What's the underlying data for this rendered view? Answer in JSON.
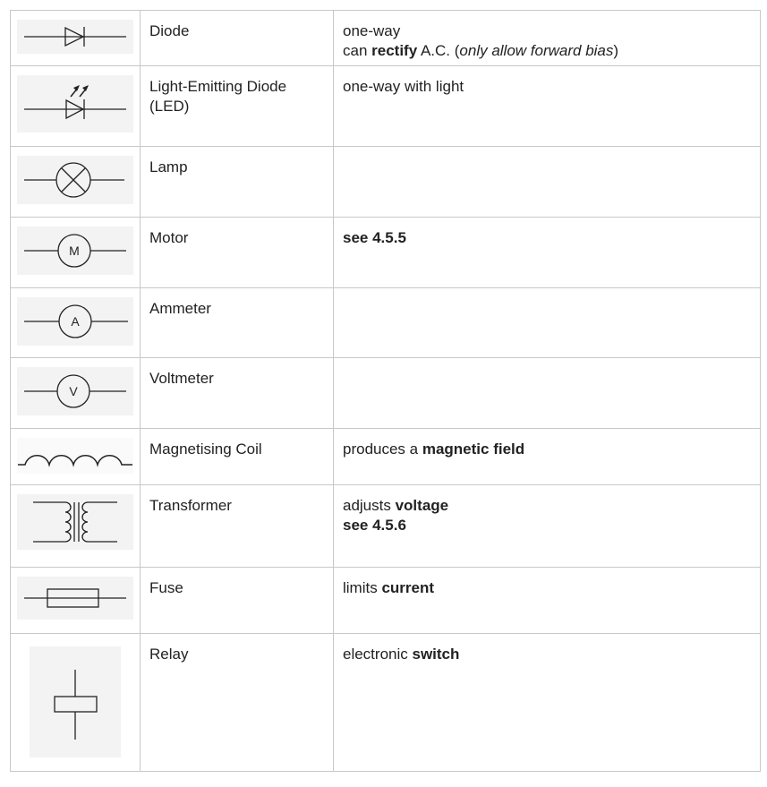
{
  "rows": [
    {
      "symbol_icon": "diode-icon",
      "name": [
        "Diode"
      ],
      "desc": [
        [
          {
            "t": "one-way"
          }
        ],
        [
          {
            "t": "can "
          },
          {
            "t": "rectify",
            "b": true
          },
          {
            "t": " A.C. ("
          },
          {
            "t": "only allow forward bias",
            "i": true
          },
          {
            "t": ")"
          }
        ]
      ]
    },
    {
      "symbol_icon": "led-icon",
      "name": [
        "Light-Emitting Diode",
        "(LED)"
      ],
      "desc": [
        [
          {
            "t": "one-way with light"
          }
        ]
      ]
    },
    {
      "symbol_icon": "lamp-icon",
      "name": [
        "Lamp"
      ],
      "desc": []
    },
    {
      "symbol_icon": "motor-icon",
      "symbol_letter": "M",
      "name": [
        "Motor"
      ],
      "desc": [
        [
          {
            "t": "see 4.5.5",
            "b": true
          }
        ]
      ]
    },
    {
      "symbol_icon": "ammeter-icon",
      "symbol_letter": "A",
      "name": [
        "Ammeter"
      ],
      "desc": []
    },
    {
      "symbol_icon": "voltmeter-icon",
      "symbol_letter": "V",
      "name": [
        "Voltmeter"
      ],
      "desc": []
    },
    {
      "symbol_icon": "magnetising-coil-icon",
      "name": [
        "Magnetising Coil"
      ],
      "desc": [
        [
          {
            "t": "produces a "
          },
          {
            "t": "magnetic field",
            "b": true
          }
        ]
      ]
    },
    {
      "symbol_icon": "transformer-icon",
      "name": [
        "Transformer"
      ],
      "desc": [
        [
          {
            "t": "adjusts "
          },
          {
            "t": "voltage",
            "b": true
          }
        ],
        [
          {
            "t": "see 4.5.6",
            "b": true
          }
        ]
      ]
    },
    {
      "symbol_icon": "fuse-icon",
      "name": [
        "Fuse"
      ],
      "desc": [
        [
          {
            "t": "limits "
          },
          {
            "t": "current",
            "b": true
          }
        ]
      ]
    },
    {
      "symbol_icon": "relay-icon",
      "name": [
        "Relay"
      ],
      "desc": [
        [
          {
            "t": "electronic "
          },
          {
            "t": "switch",
            "b": true
          }
        ]
      ]
    }
  ]
}
